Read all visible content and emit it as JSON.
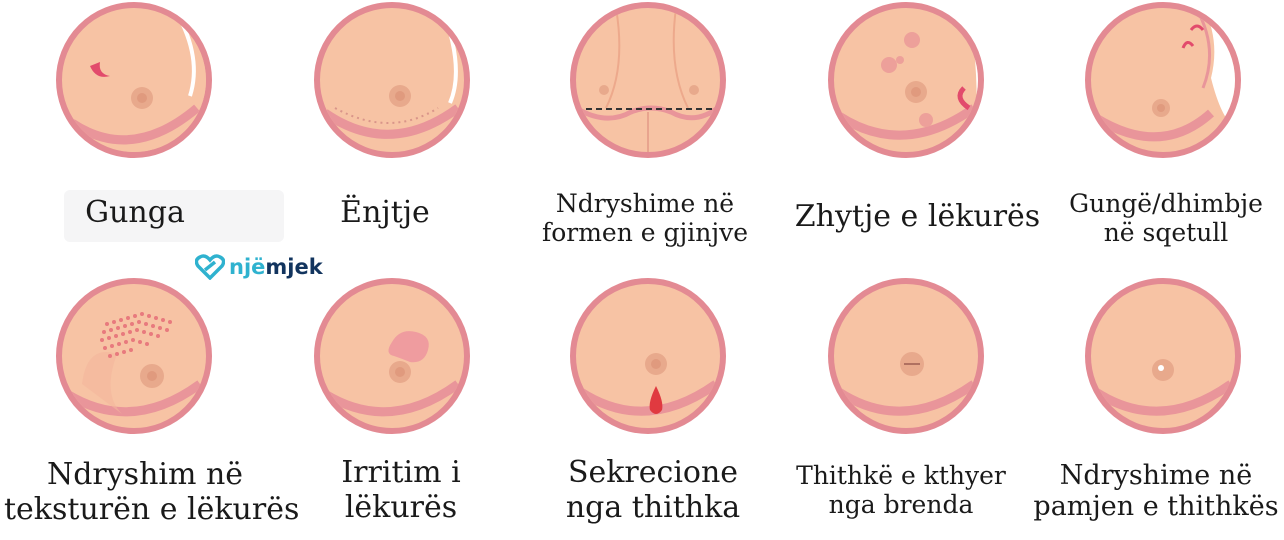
{
  "logo": {
    "part1": "një",
    "part2": "mjek",
    "icon": "heart-link-icon"
  },
  "colors": {
    "ring": "#e38a93",
    "skin": "#f7c3a4",
    "fold": "#e9959a",
    "nipple": "#e8a98c",
    "drop": "#e03a40"
  },
  "items": [
    {
      "id": "lump",
      "lines": [
        "Gunga"
      ]
    },
    {
      "id": "swelling",
      "lines": [
        "Ënjtje"
      ]
    },
    {
      "id": "shape",
      "lines": [
        "Ndryshime në",
        "formen e gjinjve"
      ]
    },
    {
      "id": "dimpling",
      "lines": [
        "Zhytje e lëkurës"
      ]
    },
    {
      "id": "armpit",
      "lines": [
        "Gungë/dhimbje",
        "në sqetull"
      ]
    },
    {
      "id": "texture",
      "lines": [
        "Ndryshim në",
        "teksturën e lëkurës"
      ]
    },
    {
      "id": "irritation",
      "lines": [
        "Irritim i",
        "lëkurës"
      ]
    },
    {
      "id": "discharge",
      "lines": [
        "Sekrecione",
        "nga thithka"
      ]
    },
    {
      "id": "inverted",
      "lines": [
        "Thithkë e kthyer",
        "nga brenda"
      ]
    },
    {
      "id": "nipple-change",
      "lines": [
        "Ndryshime në",
        "pamjen e thithkës"
      ]
    }
  ]
}
